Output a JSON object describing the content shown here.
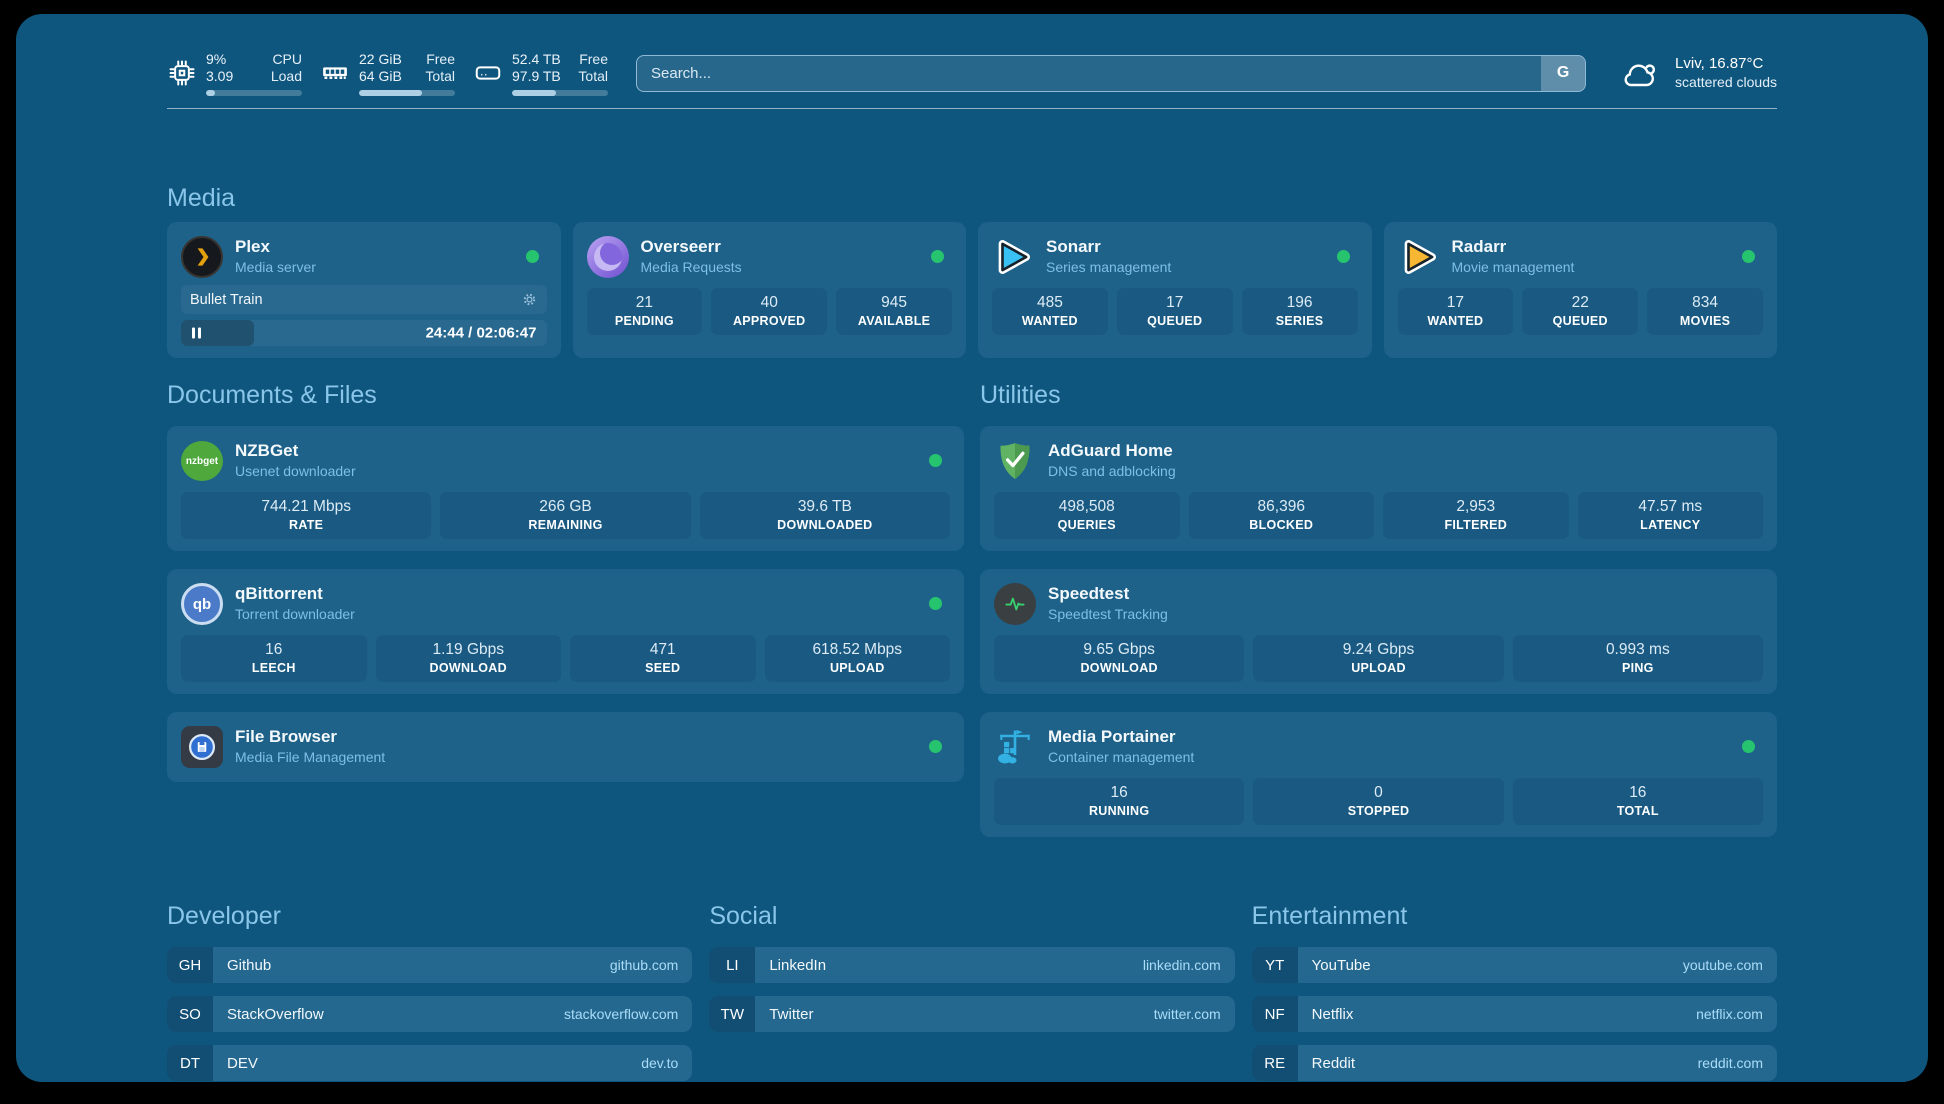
{
  "colors": {
    "background": "#0f567e",
    "card": "#1e6189",
    "pill": "#1a5a82",
    "heading": "#8ac6ea",
    "subtitle": "#7fbfe5",
    "status_green": "#27c46f",
    "link": "#a9dcf8"
  },
  "topbar": {
    "stats": [
      {
        "icon": "cpu-icon",
        "values": [
          "9%",
          "3.09"
        ],
        "labels": [
          "CPU",
          "Load"
        ],
        "progress": 9
      },
      {
        "icon": "ram-icon",
        "values": [
          "22 GiB",
          "64 GiB"
        ],
        "labels": [
          "Free",
          "Total"
        ],
        "progress": 66
      },
      {
        "icon": "disk-icon",
        "values": [
          "52.4 TB",
          "97.9 TB"
        ],
        "labels": [
          "Free",
          "Total"
        ],
        "progress": 46
      }
    ],
    "search": {
      "placeholder": "Search...",
      "button_label": "G"
    },
    "weather": {
      "summary": "Lviv, 16.87°C",
      "condition": "scattered clouds"
    }
  },
  "media": {
    "title": "Media",
    "plex": {
      "name": "Plex",
      "subtitle": "Media server",
      "now_playing": "Bullet Train",
      "time": "24:44 / 02:06:47",
      "progress": 20
    },
    "overseerr": {
      "name": "Overseerr",
      "subtitle": "Media Requests",
      "stats": [
        {
          "value": "21",
          "label": "PENDING"
        },
        {
          "value": "40",
          "label": "APPROVED"
        },
        {
          "value": "945",
          "label": "AVAILABLE"
        }
      ]
    },
    "sonarr": {
      "name": "Sonarr",
      "subtitle": "Series management",
      "stats": [
        {
          "value": "485",
          "label": "WANTED"
        },
        {
          "value": "17",
          "label": "QUEUED"
        },
        {
          "value": "196",
          "label": "SERIES"
        }
      ]
    },
    "radarr": {
      "name": "Radarr",
      "subtitle": "Movie management",
      "stats": [
        {
          "value": "17",
          "label": "WANTED"
        },
        {
          "value": "22",
          "label": "QUEUED"
        },
        {
          "value": "834",
          "label": "MOVIES"
        }
      ]
    }
  },
  "documents": {
    "title": "Documents & Files",
    "nzbget": {
      "name": "NZBGet",
      "subtitle": "Usenet downloader",
      "stats": [
        {
          "value": "744.21 Mbps",
          "label": "RATE"
        },
        {
          "value": "266 GB",
          "label": "REMAINING"
        },
        {
          "value": "39.6 TB",
          "label": "DOWNLOADED"
        }
      ]
    },
    "qbittorrent": {
      "name": "qBittorrent",
      "subtitle": "Torrent downloader",
      "stats": [
        {
          "value": "16",
          "label": "LEECH"
        },
        {
          "value": "1.19 Gbps",
          "label": "DOWNLOAD"
        },
        {
          "value": "471",
          "label": "SEED"
        },
        {
          "value": "618.52 Mbps",
          "label": "UPLOAD"
        }
      ]
    },
    "filebrowser": {
      "name": "File Browser",
      "subtitle": "Media File Management"
    }
  },
  "utilities": {
    "title": "Utilities",
    "adguard": {
      "name": "AdGuard Home",
      "subtitle": "DNS and adblocking",
      "stats": [
        {
          "value": "498,508",
          "label": "QUERIES"
        },
        {
          "value": "86,396",
          "label": "BLOCKED"
        },
        {
          "value": "2,953",
          "label": "FILTERED"
        },
        {
          "value": "47.57 ms",
          "label": "LATENCY"
        }
      ]
    },
    "speedtest": {
      "name": "Speedtest",
      "subtitle": "Speedtest Tracking",
      "stats": [
        {
          "value": "9.65 Gbps",
          "label": "DOWNLOAD"
        },
        {
          "value": "9.24 Gbps",
          "label": "UPLOAD"
        },
        {
          "value": "0.993 ms",
          "label": "PING"
        }
      ]
    },
    "portainer": {
      "name": "Media Portainer",
      "subtitle": "Container management",
      "stats": [
        {
          "value": "16",
          "label": "RUNNING"
        },
        {
          "value": "0",
          "label": "STOPPED"
        },
        {
          "value": "16",
          "label": "TOTAL"
        }
      ]
    }
  },
  "links": {
    "developer": {
      "title": "Developer",
      "items": [
        {
          "abbr": "GH",
          "name": "Github",
          "url": "github.com"
        },
        {
          "abbr": "SO",
          "name": "StackOverflow",
          "url": "stackoverflow.com"
        },
        {
          "abbr": "DT",
          "name": "DEV",
          "url": "dev.to"
        }
      ]
    },
    "social": {
      "title": "Social",
      "items": [
        {
          "abbr": "LI",
          "name": "LinkedIn",
          "url": "linkedin.com"
        },
        {
          "abbr": "TW",
          "name": "Twitter",
          "url": "twitter.com"
        }
      ]
    },
    "entertainment": {
      "title": "Entertainment",
      "items": [
        {
          "abbr": "YT",
          "name": "YouTube",
          "url": "youtube.com"
        },
        {
          "abbr": "NF",
          "name": "Netflix",
          "url": "netflix.com"
        },
        {
          "abbr": "RE",
          "name": "Reddit",
          "url": "reddit.com"
        }
      ]
    }
  }
}
